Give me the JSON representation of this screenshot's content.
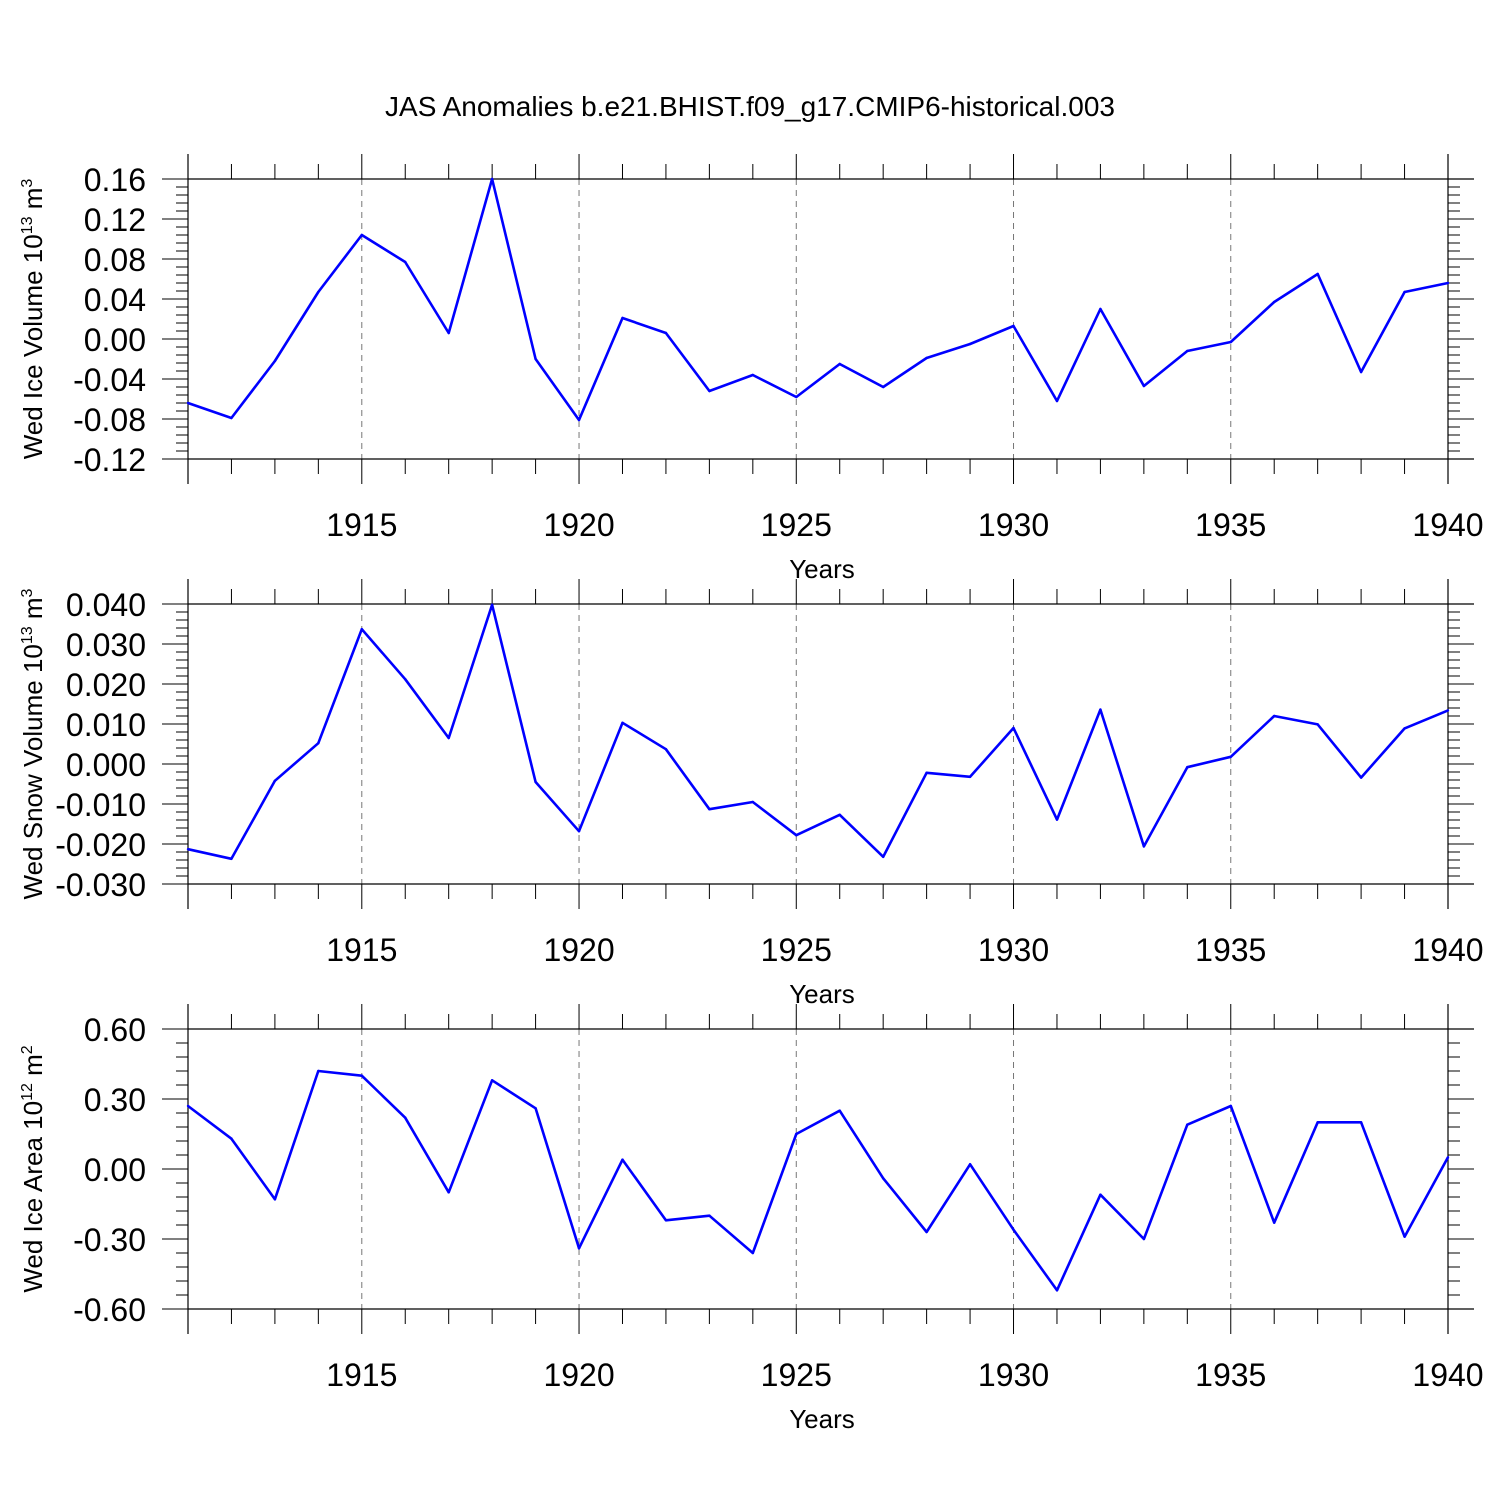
{
  "title": "JAS Anomalies b.e21.BHIST.f09_g17.CMIP6-historical.003",
  "line_color": "#0000ff",
  "chart_data": [
    {
      "type": "line",
      "ylabel": {
        "main": "Wed Ice Volume 10",
        "exp": "13",
        "unit": " m",
        "unit_exp": "3"
      },
      "xlabel": "Years",
      "xlim": [
        1911,
        1940
      ],
      "ylim": [
        -0.12,
        0.16
      ],
      "yticks": [
        0.16,
        0.12,
        0.08,
        0.04,
        0.0,
        -0.04,
        -0.08,
        -0.12
      ],
      "ytick_labels": [
        "0.16",
        "0.12",
        "0.08",
        "0.04",
        "0.00",
        "-0.04",
        "-0.08",
        "-0.12"
      ],
      "xticks": [
        1915,
        1920,
        1925,
        1930,
        1935,
        1940
      ],
      "xtick_labels": [
        "1915",
        "1920",
        "1925",
        "1930",
        "1935",
        "1940"
      ],
      "x": [
        1911,
        1912,
        1913,
        1914,
        1915,
        1916,
        1917,
        1918,
        1919,
        1920,
        1921,
        1922,
        1923,
        1924,
        1925,
        1926,
        1927,
        1928,
        1929,
        1930,
        1931,
        1932,
        1933,
        1934,
        1935,
        1936,
        1937,
        1938,
        1939,
        1940
      ],
      "y": [
        -0.064,
        -0.079,
        -0.022,
        0.047,
        0.104,
        0.077,
        0.006,
        0.16,
        -0.02,
        -0.081,
        0.021,
        0.006,
        -0.052,
        -0.036,
        -0.058,
        -0.025,
        -0.048,
        -0.019,
        -0.005,
        0.013,
        -0.062,
        0.03,
        -0.047,
        -0.012,
        -0.003,
        0.037,
        0.065,
        -0.033,
        0.047,
        0.056
      ]
    },
    {
      "type": "line",
      "ylabel": {
        "main": "Wed Snow Volume 10",
        "exp": "13",
        "unit": " m",
        "unit_exp": "3"
      },
      "xlabel": "Years",
      "xlim": [
        1911,
        1940
      ],
      "ylim": [
        -0.03,
        0.04
      ],
      "yticks": [
        0.04,
        0.03,
        0.02,
        0.01,
        0.0,
        -0.01,
        -0.02,
        -0.03
      ],
      "ytick_labels": [
        "0.040",
        "0.030",
        "0.020",
        "0.010",
        "0.000",
        "-0.010",
        "-0.020",
        "-0.030"
      ],
      "xticks": [
        1915,
        1920,
        1925,
        1930,
        1935,
        1940
      ],
      "xtick_labels": [
        "1915",
        "1920",
        "1925",
        "1930",
        "1935",
        "1940"
      ],
      "x": [
        1911,
        1912,
        1913,
        1914,
        1915,
        1916,
        1917,
        1918,
        1919,
        1920,
        1921,
        1922,
        1923,
        1924,
        1925,
        1926,
        1927,
        1928,
        1929,
        1930,
        1931,
        1932,
        1933,
        1934,
        1935,
        1936,
        1937,
        1938,
        1939,
        1940
      ],
      "y": [
        -0.0213,
        -0.0237,
        -0.0042,
        0.0052,
        0.0337,
        0.0212,
        0.0065,
        0.0398,
        -0.0045,
        -0.0168,
        0.0103,
        0.0037,
        -0.0113,
        -0.0095,
        -0.0178,
        -0.0127,
        -0.0232,
        -0.0022,
        -0.0032,
        0.009,
        -0.0139,
        0.0136,
        -0.0206,
        -0.0008,
        0.0018,
        0.012,
        0.0099,
        -0.0034,
        0.0089,
        0.0134
      ]
    },
    {
      "type": "line",
      "ylabel": {
        "main": "Wed Ice Area 10",
        "exp": "12",
        "unit": " m",
        "unit_exp": "2"
      },
      "xlabel": "Years",
      "xlim": [
        1911,
        1940
      ],
      "ylim": [
        -0.6,
        0.6
      ],
      "yticks": [
        0.6,
        0.3,
        0.0,
        -0.3,
        -0.6
      ],
      "ytick_labels": [
        "0.60",
        "0.30",
        "0.00",
        "-0.30",
        "-0.60"
      ],
      "xticks": [
        1915,
        1920,
        1925,
        1930,
        1935,
        1940
      ],
      "xtick_labels": [
        "1915",
        "1920",
        "1925",
        "1930",
        "1935",
        "1940"
      ],
      "x": [
        1911,
        1912,
        1913,
        1914,
        1915,
        1916,
        1917,
        1918,
        1919,
        1920,
        1921,
        1922,
        1923,
        1924,
        1925,
        1926,
        1927,
        1928,
        1929,
        1930,
        1931,
        1932,
        1933,
        1934,
        1935,
        1936,
        1937,
        1938,
        1939,
        1940
      ],
      "y": [
        0.27,
        0.13,
        -0.13,
        0.42,
        0.4,
        0.22,
        -0.1,
        0.38,
        0.26,
        -0.34,
        0.04,
        -0.22,
        -0.2,
        -0.36,
        0.15,
        0.25,
        -0.04,
        -0.27,
        0.02,
        -0.26,
        -0.52,
        -0.11,
        -0.3,
        0.19,
        0.27,
        -0.23,
        0.2,
        0.2,
        -0.29,
        0.05
      ]
    }
  ]
}
